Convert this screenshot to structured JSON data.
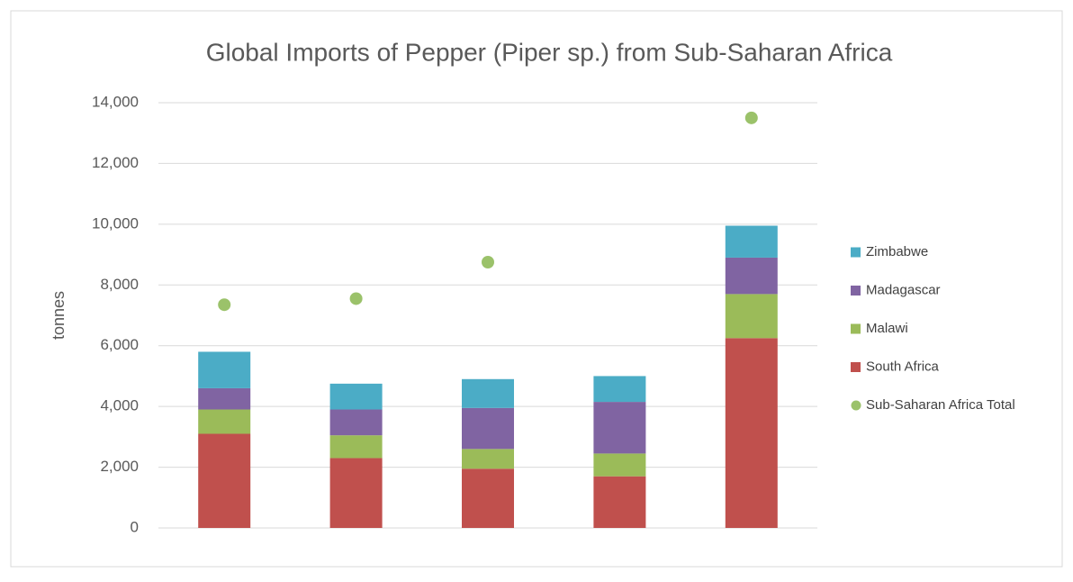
{
  "chart_data": {
    "type": "bar",
    "stacked": true,
    "title": "Global Imports of Pepper (Piper sp.) from Sub-Saharan Africa",
    "y_label": "tonnes",
    "categories": [
      null,
      null,
      null,
      null,
      null
    ],
    "series": [
      {
        "name": "South Africa",
        "color": "#c0504d",
        "values": [
          3100,
          2300,
          1950,
          1700,
          6250
        ]
      },
      {
        "name": "Malawi",
        "color": "#9bbb59",
        "values": [
          800,
          750,
          650,
          750,
          1450
        ]
      },
      {
        "name": "Madagascar",
        "color": "#8064a2",
        "values": [
          700,
          850,
          1350,
          1700,
          1200
        ]
      },
      {
        "name": "Zimbabwe",
        "color": "#4bacc6",
        "values": [
          1200,
          850,
          950,
          850,
          1050
        ]
      },
      {
        "name": "Sub-Saharan Africa  Total",
        "type": "scatter",
        "color": "#9bc26a",
        "values": [
          7350,
          7550,
          8750,
          null,
          13500
        ]
      }
    ],
    "ylim": [
      0,
      14000
    ],
    "yticks": [
      0,
      {
        "value": 2000,
        "label": "2,000"
      },
      {
        "value": 4000,
        "label": "4,000"
      },
      {
        "value": 6000,
        "label": "6,000"
      },
      {
        "value": 8000,
        "label": "8,000"
      },
      {
        "value": 10000,
        "label": "10,000"
      },
      {
        "value": 12000,
        "label": "12,000"
      },
      {
        "value": 14000,
        "label": "14,000"
      }
    ],
    "grid": true,
    "legend": "right"
  }
}
